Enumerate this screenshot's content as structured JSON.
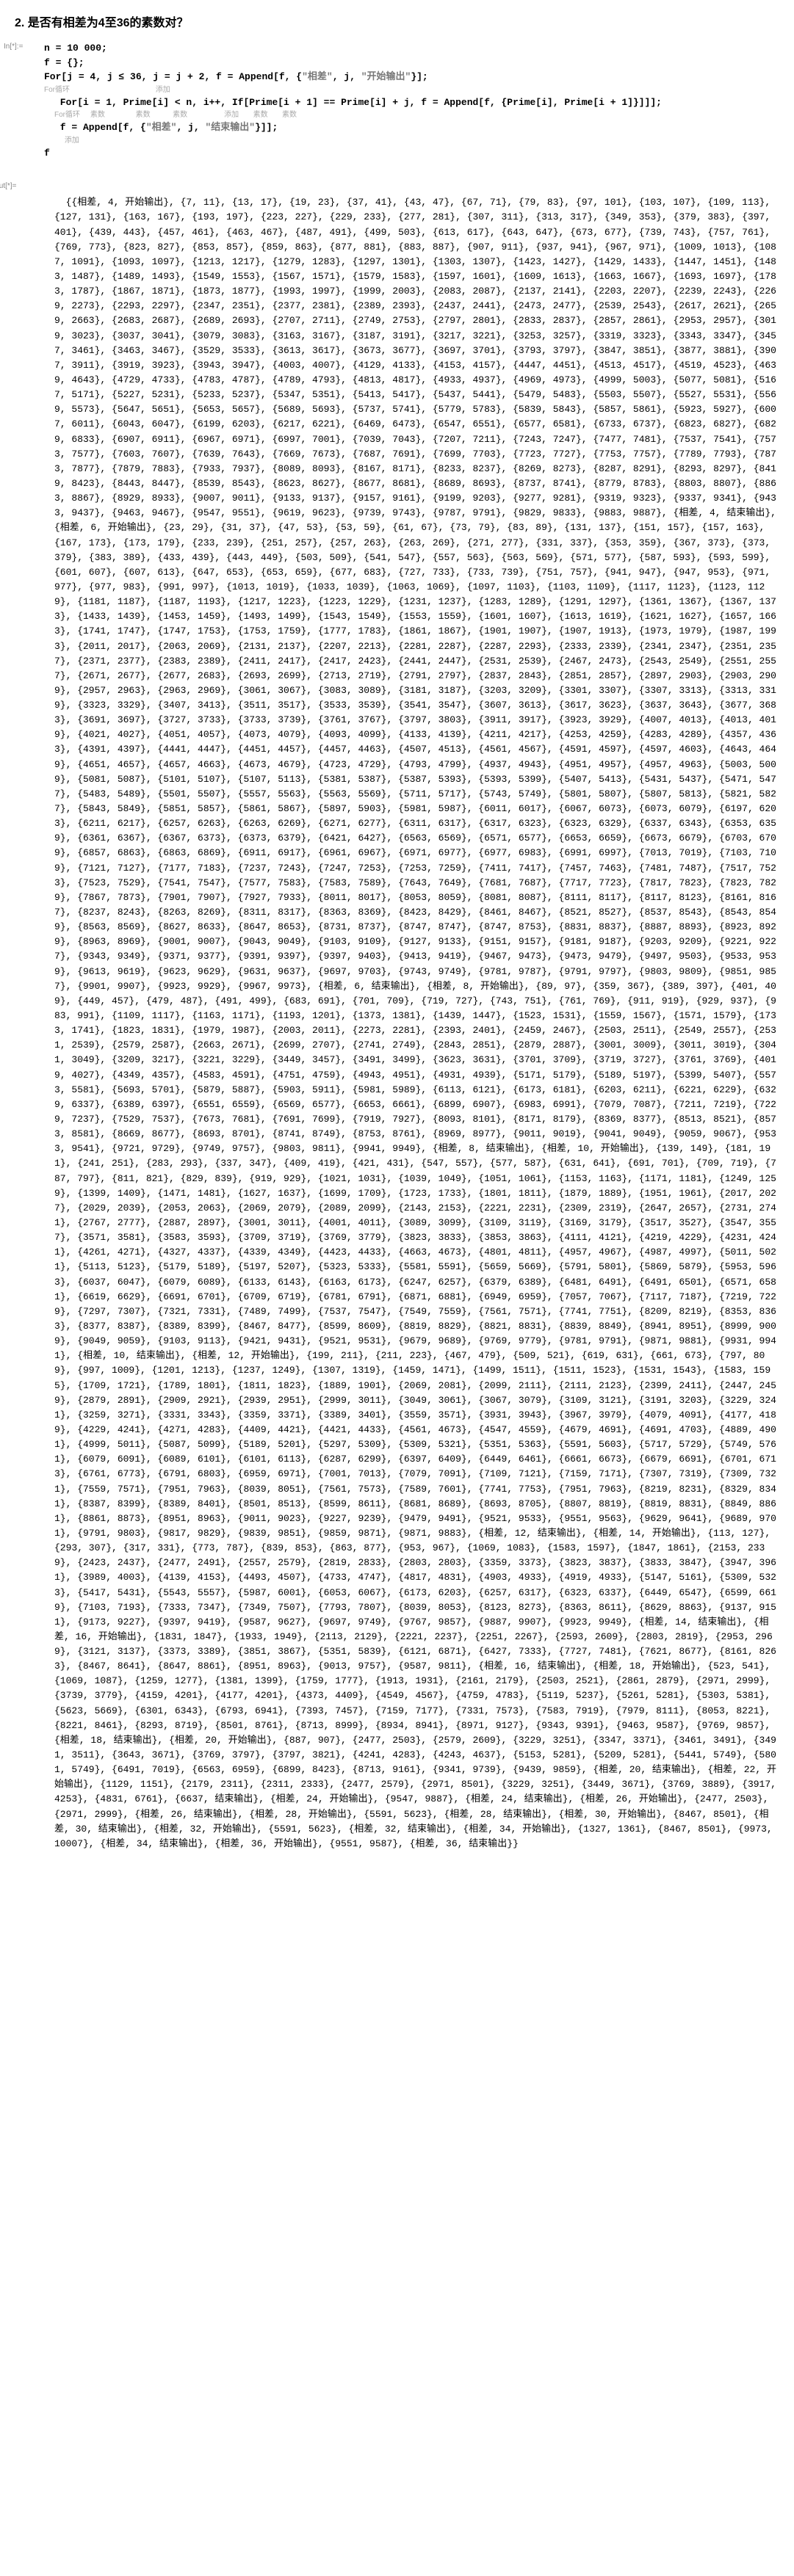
{
  "title": "2. 是否有相差为4至36的素数对？",
  "code": {
    "in_label": "In[*]:=",
    "line1": "n = 10 000;",
    "line2": "f = {};",
    "line3_a": "For[",
    "line3_b": "j = 4, j ≤ 36, j = j + 2, f = Append[f, {",
    "line3_str1": "\"相差\"",
    "line3_c": ", j, ",
    "line3_str2": "\"开始输出\"",
    "line3_d": "}];",
    "line3_comment": "For循环                                          添加",
    "line4_a": " For[i = 1, Prime[i] < n, i++, If[Prime[i + 1] == Prime[i] + j, f = Append[f, {Prime[i], Prime[i + 1]}]]];",
    "line4_comment": "For循环     素数               素数           素数                  添加       素数       素数",
    "line5_a": " f = Append[f, {",
    "line5_str1": "\"相差\"",
    "line5_b": ", j, ",
    "line5_str2": "\"结束输出\"",
    "line5_c": "}]];",
    "line5_comment": "     添加",
    "line6": "f"
  },
  "out_label": "Out[*]=",
  "output_text": "{{相差, 4, 开始输出}, {7, 11}, {13, 17}, {19, 23}, {37, 41}, {43, 47}, {67, 71}, {79, 83}, {97, 101}, {103, 107}, {109, 113}, {127, 131}, {163, 167}, {193, 197}, {223, 227}, {229, 233}, {277, 281}, {307, 311}, {313, 317}, {349, 353}, {379, 383}, {397, 401}, {439, 443}, {457, 461}, {463, 467}, {487, 491}, {499, 503}, {613, 617}, {643, 647}, {673, 677}, {739, 743}, {757, 761}, {769, 773}, {823, 827}, {853, 857}, {859, 863}, {877, 881}, {883, 887}, {907, 911}, {937, 941}, {967, 971}, {1009, 1013}, {1087, 1091}, {1093, 1097}, {1213, 1217}, {1279, 1283}, {1297, 1301}, {1303, 1307}, {1423, 1427}, {1429, 1433}, {1447, 1451}, {1483, 1487}, {1489, 1493}, {1549, 1553}, {1567, 1571}, {1579, 1583}, {1597, 1601}, {1609, 1613}, {1663, 1667}, {1693, 1697}, {1783, 1787}, {1867, 1871}, {1873, 1877}, {1993, 1997}, {1999, 2003}, {2083, 2087}, {2137, 2141}, {2203, 2207}, {2239, 2243}, {2269, 2273}, {2293, 2297}, {2347, 2351}, {2377, 2381}, {2389, 2393}, {2437, 2441}, {2473, 2477}, {2539, 2543}, {2617, 2621}, {2659, 2663}, {2683, 2687}, {2689, 2693}, {2707, 2711}, {2749, 2753}, {2797, 2801}, {2833, 2837}, {2857, 2861}, {2953, 2957}, {3019, 3023}, {3037, 3041}, {3079, 3083}, {3163, 3167}, {3187, 3191}, {3217, 3221}, {3253, 3257}, {3319, 3323}, {3343, 3347}, {3457, 3461}, {3463, 3467}, {3529, 3533}, {3613, 3617}, {3673, 3677}, {3697, 3701}, {3793, 3797}, {3847, 3851}, {3877, 3881}, {3907, 3911}, {3919, 3923}, {3943, 3947}, {4003, 4007}, {4129, 4133}, {4153, 4157}, {4447, 4451}, {4513, 4517}, {4519, 4523}, {4639, 4643}, {4729, 4733}, {4783, 4787}, {4789, 4793}, {4813, 4817}, {4933, 4937}, {4969, 4973}, {4999, 5003}, {5077, 5081}, {5167, 5171}, {5227, 5231}, {5233, 5237}, {5347, 5351}, {5413, 5417}, {5437, 5441}, {5479, 5483}, {5503, 5507}, {5527, 5531}, {5569, 5573}, {5647, 5651}, {5653, 5657}, {5689, 5693}, {5737, 5741}, {5779, 5783}, {5839, 5843}, {5857, 5861}, {5923, 5927}, {6007, 6011}, {6043, 6047}, {6199, 6203}, {6217, 6221}, {6469, 6473}, {6547, 6551}, {6577, 6581}, {6733, 6737}, {6823, 6827}, {6829, 6833}, {6907, 6911}, {6967, 6971}, {6997, 7001}, {7039, 7043}, {7207, 7211}, {7243, 7247}, {7477, 7481}, {7537, 7541}, {7573, 7577}, {7603, 7607}, {7639, 7643}, {7669, 7673}, {7687, 7691}, {7699, 7703}, {7723, 7727}, {7753, 7757}, {7789, 7793}, {7873, 7877}, {7879, 7883}, {7933, 7937}, {8089, 8093}, {8167, 8171}, {8233, 8237}, {8269, 8273}, {8287, 8291}, {8293, 8297}, {8419, 8423}, {8443, 8447}, {8539, 8543}, {8623, 8627}, {8677, 8681}, {8689, 8693}, {8737, 8741}, {8779, 8783}, {8803, 8807}, {8863, 8867}, {8929, 8933}, {9007, 9011}, {9133, 9137}, {9157, 9161}, {9199, 9203}, {9277, 9281}, {9319, 9323}, {9337, 9341}, {9433, 9437}, {9463, 9467}, {9547, 9551}, {9619, 9623}, {9739, 9743}, {9787, 9791}, {9829, 9833}, {9883, 9887}, {相差, 4, 结束输出}, {相差, 6, 开始输出}, {23, 29}, {31, 37}, {47, 53}, {53, 59}, {61, 67}, {73, 79}, {83, 89}, {131, 137}, {151, 157}, {157, 163}, {167, 173}, {173, 179}, {233, 239}, {251, 257}, {257, 263}, {263, 269}, {271, 277}, {331, 337}, {353, 359}, {367, 373}, {373, 379}, {383, 389}, {433, 439}, {443, 449}, {503, 509}, {541, 547}, {557, 563}, {563, 569}, {571, 577}, {587, 593}, {593, 599}, {601, 607}, {607, 613}, {647, 653}, {653, 659}, {677, 683}, {727, 733}, {733, 739}, {751, 757}, {941, 947}, {947, 953}, {971, 977}, {977, 983}, {991, 997}, {1013, 1019}, {1033, 1039}, {1063, 1069}, {1097, 1103}, {1103, 1109}, {1117, 1123}, {1123, 1129}, {1181, 1187}, {1187, 1193}, {1217, 1223}, {1223, 1229}, {1231, 1237}, {1283, 1289}, {1291, 1297}, {1361, 1367}, {1367, 1373}, {1433, 1439}, {1453, 1459}, {1493, 1499}, {1543, 1549}, {1553, 1559}, {1601, 1607}, {1613, 1619}, {1621, 1627}, {1657, 1663}, {1741, 1747}, {1747, 1753}, {1753, 1759}, {1777, 1783}, {1861, 1867}, {1901, 1907}, {1907, 1913}, {1973, 1979}, {1987, 1993}, {2011, 2017}, {2063, 2069}, {2131, 2137}, {2207, 2213}, {2281, 2287}, {2287, 2293}, {2333, 2339}, {2341, 2347}, {2351, 2357}, {2371, 2377}, {2383, 2389}, {2411, 2417}, {2417, 2423}, {2441, 2447}, {2531, 2539}, {2467, 2473}, {2543, 2549}, {2551, 2557}, {2671, 2677}, {2677, 2683}, {2693, 2699}, {2713, 2719}, {2791, 2797}, {2837, 2843}, {2851, 2857}, {2897, 2903}, {2903, 2909}, {2957, 2963}, {2963, 2969}, {3061, 3067}, {3083, 3089}, {3181, 3187}, {3203, 3209}, {3301, 3307}, {3307, 3313}, {3313, 3319}, {3323, 3329}, {3407, 3413}, {3511, 3517}, {3533, 3539}, {3541, 3547}, {3607, 3613}, {3617, 3623}, {3637, 3643}, {3677, 3683}, {3691, 3697}, {3727, 3733}, {3733, 3739}, {3761, 3767}, {3797, 3803}, {3911, 3917}, {3923, 3929}, {4007, 4013}, {4013, 4019}, {4021, 4027}, {4051, 4057}, {4073, 4079}, {4093, 4099}, {4133, 4139}, {4211, 4217}, {4253, 4259}, {4283, 4289}, {4357, 4363}, {4391, 4397}, {4441, 4447}, {4451, 4457}, {4457, 4463}, {4507, 4513}, {4561, 4567}, {4591, 4597}, {4597, 4603}, {4643, 4649}, {4651, 4657}, {4657, 4663}, {4673, 4679}, {4723, 4729}, {4793, 4799}, {4937, 4943}, {4951, 4957}, {4957, 4963}, {5003, 5009}, {5081, 5087}, {5101, 5107}, {5107, 5113}, {5381, 5387}, {5387, 5393}, {5393, 5399}, {5407, 5413}, {5431, 5437}, {5471, 5477}, {5483, 5489}, {5501, 5507}, {5557, 5563}, {5563, 5569}, {5711, 5717}, {5743, 5749}, {5801, 5807}, {5807, 5813}, {5821, 5827}, {5843, 5849}, {5851, 5857}, {5861, 5867}, {5897, 5903}, {5981, 5987}, {6011, 6017}, {6067, 6073}, {6073, 6079}, {6197, 6203}, {6211, 6217}, {6257, 6263}, {6263, 6269}, {6271, 6277}, {6311, 6317}, {6317, 6323}, {6323, 6329}, {6337, 6343}, {6353, 6359}, {6361, 6367}, {6367, 6373}, {6373, 6379}, {6421, 6427}, {6563, 6569}, {6571, 6577}, {6653, 6659}, {6673, 6679}, {6703, 6709}, {6857, 6863}, {6863, 6869}, {6911, 6917}, {6961, 6967}, {6971, 6977}, {6977, 6983}, {6991, 6997}, {7013, 7019}, {7103, 7109}, {7121, 7127}, {7177, 7183}, {7237, 7243}, {7247, 7253}, {7253, 7259}, {7411, 7417}, {7457, 7463}, {7481, 7487}, {7517, 7523}, {7523, 7529}, {7541, 7547}, {7577, 7583}, {7583, 7589}, {7643, 7649}, {7681, 7687}, {7717, 7723}, {7817, 7823}, {7823, 7829}, {7867, 7873}, {7901, 7907}, {7927, 7933}, {8011, 8017}, {8053, 8059}, {8081, 8087}, {8111, 8117}, {8117, 8123}, {8161, 8167}, {8237, 8243}, {8263, 8269}, {8311, 8317}, {8363, 8369}, {8423, 8429}, {8461, 8467}, {8521, 8527}, {8537, 8543}, {8543, 8549}, {8563, 8569}, {8627, 8633}, {8647, 8653}, {8731, 8737}, {8747, 8747}, {8747, 8753}, {8831, 8837}, {8887, 8893}, {8923, 8929}, {8963, 8969}, {9001, 9007}, {9043, 9049}, {9103, 9109}, {9127, 9133}, {9151, 9157}, {9181, 9187}, {9203, 9209}, {9221, 9227}, {9343, 9349}, {9371, 9377}, {9391, 9397}, {9397, 9403}, {9413, 9419}, {9467, 9473}, {9473, 9479}, {9497, 9503}, {9533, 9539}, {9613, 9619}, {9623, 9629}, {9631, 9637}, {9697, 9703}, {9743, 9749}, {9781, 9787}, {9791, 9797}, {9803, 9809}, {9851, 9857}, {9901, 9907}, {9923, 9929}, {9967, 9973}, {相差, 6, 结束输出}, {相差, 8, 开始输出}, {89, 97}, {359, 367}, {389, 397}, {401, 409}, {449, 457}, {479, 487}, {491, 499}, {683, 691}, {701, 709}, {719, 727}, {743, 751}, {761, 769}, {911, 919}, {929, 937}, {983, 991}, {1109, 1117}, {1163, 1171}, {1193, 1201}, {1373, 1381}, {1439, 1447}, {1523, 1531}, {1559, 1567}, {1571, 1579}, {1733, 1741}, {1823, 1831}, {1979, 1987}, {2003, 2011}, {2273, 2281}, {2393, 2401}, {2459, 2467}, {2503, 2511}, {2549, 2557}, {2531, 2539}, {2579, 2587}, {2663, 2671}, {2699, 2707}, {2741, 2749}, {2843, 2851}, {2879, 2887}, {3001, 3009}, {3011, 3019}, {3041, 3049}, {3209, 3217}, {3221, 3229}, {3449, 3457}, {3491, 3499}, {3623, 3631}, {3701, 3709}, {3719, 3727}, {3761, 3769}, {4019, 4027}, {4349, 4357}, {4583, 4591}, {4751, 4759}, {4943, 4951}, {4931, 4939}, {5171, 5179}, {5189, 5197}, {5399, 5407}, {5573, 5581}, {5693, 5701}, {5879, 5887}, {5903, 5911}, {5981, 5989}, {6113, 6121}, {6173, 6181}, {6203, 6211}, {6221, 6229}, {6329, 6337}, {6389, 6397}, {6551, 6559}, {6569, 6577}, {6653, 6661}, {6899, 6907}, {6983, 6991}, {7079, 7087}, {7211, 7219}, {7229, 7237}, {7529, 7537}, {7673, 7681}, {7691, 7699}, {7919, 7927}, {8093, 8101}, {8171, 8179}, {8369, 8377}, {8513, 8521}, {8573, 8581}, {8669, 8677}, {8693, 8701}, {8741, 8749}, {8753, 8761}, {8969, 8977}, {9011, 9019}, {9041, 9049}, {9059, 9067}, {9533, 9541}, {9721, 9729}, {9749, 9757}, {9803, 9811}, {9941, 9949}, {相差, 8, 结束输出}, {相差, 10, 开始输出}, {139, 149}, {181, 191}, {241, 251}, {283, 293}, {337, 347}, {409, 419}, {421, 431}, {547, 557}, {577, 587}, {631, 641}, {691, 701}, {709, 719}, {787, 797}, {811, 821}, {829, 839}, {919, 929}, {1021, 1031}, {1039, 1049}, {1051, 1061}, {1153, 1163}, {1171, 1181}, {1249, 1259}, {1399, 1409}, {1471, 1481}, {1627, 1637}, {1699, 1709}, {1723, 1733}, {1801, 1811}, {1879, 1889}, {1951, 1961}, {2017, 2027}, {2029, 2039}, {2053, 2063}, {2069, 2079}, {2089, 2099}, {2143, 2153}, {2221, 2231}, {2309, 2319}, {2647, 2657}, {2731, 2741}, {2767, 2777}, {2887, 2897}, {3001, 3011}, {4001, 4011}, {3089, 3099}, {3109, 3119}, {3169, 3179}, {3517, 3527}, {3547, 3557}, {3571, 3581}, {3583, 3593}, {3709, 3719}, {3769, 3779}, {3823, 3833}, {3853, 3863}, {4111, 4121}, {4219, 4229}, {4231, 4241}, {4261, 4271}, {4327, 4337}, {4339, 4349}, {4423, 4433}, {4663, 4673}, {4801, 4811}, {4957, 4967}, {4987, 4997}, {5011, 5021}, {5113, 5123}, {5179, 5189}, {5197, 5207}, {5323, 5333}, {5581, 5591}, {5659, 5669}, {5791, 5801}, {5869, 5879}, {5953, 5963}, {6037, 6047}, {6079, 6089}, {6133, 6143}, {6163, 6173}, {6247, 6257}, {6379, 6389}, {6481, 6491}, {6491, 6501}, {6571, 6581}, {6619, 6629}, {6691, 6701}, {6709, 6719}, {6781, 6791}, {6871, 6881}, {6949, 6959}, {7057, 7067}, {7117, 7187}, {7219, 7229}, {7297, 7307}, {7321, 7331}, {7489, 7499}, {7537, 7547}, {7549, 7559}, {7561, 7571}, {7741, 7751}, {8209, 8219}, {8353, 8363}, {8377, 8387}, {8389, 8399}, {8467, 8477}, {8599, 8609}, {8819, 8829}, {8821, 8831}, {8839, 8849}, {8941, 8951}, {8999, 9009}, {9049, 9059}, {9103, 9113}, {9421, 9431}, {9521, 9531}, {9679, 9689}, {9769, 9779}, {9781, 9791}, {9871, 9881}, {9931, 9941}, {相差, 10, 结束输出}, {相差, 12, 开始输出}, {199, 211}, {211, 223}, {467, 479}, {509, 521}, {619, 631}, {661, 673}, {797, 809}, {997, 1009}, {1201, 1213}, {1237, 1249}, {1307, 1319}, {1459, 1471}, {1499, 1511}, {1511, 1523}, {1531, 1543}, {1583, 1595}, {1709, 1721}, {1789, 1801}, {1811, 1823}, {1889, 1901}, {2069, 2081}, {2099, 2111}, {2111, 2123}, {2399, 2411}, {2447, 2459}, {2879, 2891}, {2909, 2921}, {2939, 2951}, {2999, 3011}, {3049, 3061}, {3067, 3079}, {3109, 3121}, {3191, 3203}, {3229, 3241}, {3259, 3271}, {3331, 3343}, {3359, 3371}, {3389, 3401}, {3559, 3571}, {3931, 3943}, {3967, 3979}, {4079, 4091}, {4177, 4189}, {4229, 4241}, {4271, 4283}, {4409, 4421}, {4421, 4433}, {4561, 4673}, {4547, 4559}, {4679, 4691}, {4691, 4703}, {4889, 4901}, {4999, 5011}, {5087, 5099}, {5189, 5201}, {5297, 5309}, {5309, 5321}, {5351, 5363}, {5591, 5603}, {5717, 5729}, {5749, 5761}, {6079, 6091}, {6089, 6101}, {6101, 6113}, {6287, 6299}, {6397, 6409}, {6449, 6461}, {6661, 6673}, {6679, 6691}, {6701, 6713}, {6761, 6773}, {6791, 6803}, {6959, 6971}, {7001, 7013}, {7079, 7091}, {7109, 7121}, {7159, 7171}, {7307, 7319}, {7309, 7321}, {7559, 7571}, {7951, 7963}, {8039, 8051}, {7561, 7573}, {7589, 7601}, {7741, 7753}, {7951, 7963}, {8219, 8231}, {8329, 8341}, {8387, 8399}, {8389, 8401}, {8501, 8513}, {8599, 8611}, {8681, 8689}, {8693, 8705}, {8807, 8819}, {8819, 8831}, {8849, 8861}, {8861, 8873}, {8951, 8963}, {9011, 9023}, {9227, 9239}, {9479, 9491}, {9521, 9533}, {9551, 9563}, {9629, 9641}, {9689, 9701}, {9791, 9803}, {9817, 9829}, {9839, 9851}, {9859, 9871}, {9871, 9883}, {相差, 12, 结束输出}, {相差, 14, 开始输出}, {113, 127}, {293, 307}, {317, 331}, {773, 787}, {839, 853}, {863, 877}, {953, 967}, {1069, 1083}, {1583, 1597}, {1847, 1861}, {2153, 2339}, {2423, 2437}, {2477, 2491}, {2557, 2579}, {2819, 2833}, {2803, 2803}, {3359, 3373}, {3823, 3837}, {3833, 3847}, {3947, 3961}, {3989, 4003}, {4139, 4153}, {4493, 4507}, {4733, 4747}, {4817, 4831}, {4903, 4933}, {4919, 4933}, {5147, 5161}, {5309, 5323}, {5417, 5431}, {5543, 5557}, {5987, 6001}, {6053, 6067}, {6173, 6203}, {6257, 6317}, {6323, 6337}, {6449, 6547}, {6599, 6619}, {7103, 7193}, {7333, 7347}, {7349, 7507}, {7793, 7807}, {8039, 8053}, {8123, 8273}, {8363, 8611}, {8629, 8863}, {9137, 9151}, {9173, 9227}, {9397, 9419}, {9587, 9627}, {9697, 9749}, {9767, 9857}, {9887, 9907}, {9923, 9949}, {相差, 14, 结束输出}, {相差, 16, 开始输出}, {1831, 1847}, {1933, 1949}, {2113, 2129}, {2221, 2237}, {2251, 2267}, {2593, 2609}, {2803, 2819}, {2953, 2969}, {3121, 3137}, {3373, 3389}, {3851, 3867}, {5351, 5839}, {6121, 6871}, {6427, 7333}, {7727, 7481}, {7621, 8677}, {8161, 8263}, {8467, 8641}, {8647, 8861}, {8951, 8963}, {9013, 9757}, {9587, 9811}, {相差, 16, 结束输出}, {相差, 18, 开始输出}, {523, 541}, {1069, 1087}, {1259, 1277}, {1381, 1399}, {1759, 1777}, {1913, 1931}, {2161, 2179}, {2503, 2521}, {2861, 2879}, {2971, 2999}, {3739, 3779}, {4159, 4201}, {4177, 4201}, {4373, 4409}, {4549, 4567}, {4759, 4783}, {5119, 5237}, {5261, 5281}, {5303, 5381}, {5623, 5669}, {6301, 6343}, {6793, 6941}, {7393, 7457}, {7159, 7177}, {7331, 7573}, {7583, 7919}, {7979, 8111}, {8053, 8221}, {8221, 8461}, {8293, 8719}, {8501, 8761}, {8713, 8999}, {8934, 8941}, {8971, 9127}, {9343, 9391}, {9463, 9587}, {9769, 9857}, {相差, 18, 结束输出}, {相差, 20, 开始输出}, {887, 907}, {2477, 2503}, {2579, 2609}, {3229, 3251}, {3347, 3371}, {3461, 3491}, {3491, 3511}, {3643, 3671}, {3769, 3797}, {3797, 3821}, {4241, 4283}, {4243, 4637}, {5153, 5281}, {5209, 5281}, {5441, 5749}, {5801, 5749}, {6491, 7019}, {6563, 6959}, {6899, 8423}, {8713, 9161}, {9341, 9739}, {9439, 9859}, {相差, 20, 结束输出}, {相差, 22, 开始输出}, {1129, 1151}, {2179, 2311}, {2311, 2333}, {2477, 2579}, {2971, 8501}, {3229, 3251}, {3449, 3671}, {3769, 3889}, {3917, 4253}, {4831, 6761}, {6637, 结束输出}, {相差, 24, 开始输出}, {9547, 9887}, {相差, 24, 结束输出}, {相差, 26, 开始输出}, {2477, 2503}, {2971, 2999}, {相差, 26, 结束输出}, {相差, 28, 开始输出}, {5591, 5623}, {相差, 28, 结束输出}, {相差, 30, 开始输出}, {8467, 8501}, {相差, 30, 结束输出}, {相差, 32, 开始输出}, {5591, 5623}, {相差, 32, 结束输出}, {相差, 34, 开始输出}, {1327, 1361}, {8467, 8501}, {9973, 10007}, {相差, 34, 结束输出}, {相差, 36, 开始输出}, {9551, 9587}, {相差, 36, 结束输出}}"
}
